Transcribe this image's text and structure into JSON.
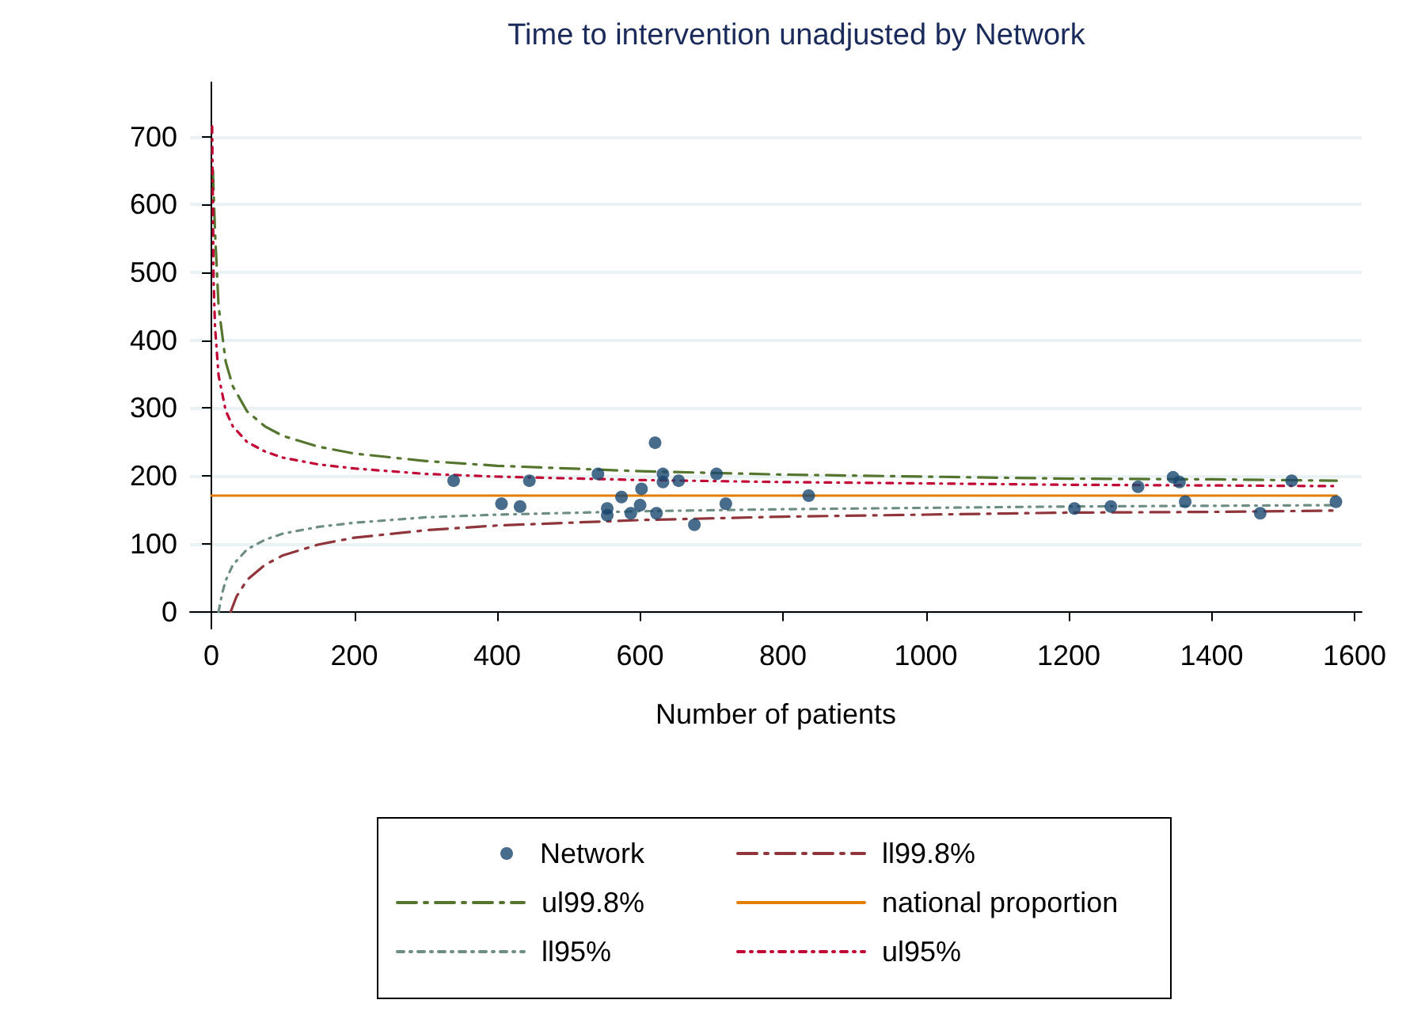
{
  "chart_data": {
    "type": "scatter",
    "title": "Time to intervention unadjusted by Network",
    "xlabel": "Number of patients",
    "xlim": [
      -30,
      1610
    ],
    "xticks": [
      0,
      200,
      400,
      600,
      800,
      1000,
      1200,
      1400,
      1600
    ],
    "ylim": [
      -25,
      780
    ],
    "yticks": [
      0,
      100,
      200,
      300,
      400,
      500,
      600,
      700
    ],
    "grid": "y",
    "legend": "bottom",
    "series": [
      {
        "name": "Network",
        "marker": "circle",
        "color": "#1a476f",
        "x": [
          339,
          406,
          432,
          445,
          541,
          554,
          554,
          574,
          587,
          600,
          602,
          621,
          623,
          632,
          632,
          654,
          676,
          707,
          720,
          836,
          1208,
          1259,
          1297,
          1346,
          1355,
          1363,
          1468,
          1512,
          1574
        ],
        "values": [
          193,
          159,
          155,
          193,
          203,
          152,
          142,
          169,
          145,
          157,
          181,
          249,
          145,
          203,
          191,
          193,
          128,
          203,
          159,
          171,
          152,
          155,
          184,
          198,
          191,
          162,
          145,
          193,
          162
        ]
      },
      {
        "name": "ll99.8%",
        "type": "line",
        "marker": "none",
        "line_style": "dashed",
        "color": "#90353b",
        "x": [
          27,
          35,
          50,
          75,
          100,
          150,
          200,
          300,
          400,
          600,
          800,
          1000,
          1200,
          1400,
          1575
        ],
        "values": [
          0,
          22,
          47,
          69,
          83,
          99,
          109,
          120,
          127,
          135,
          140,
          143,
          146,
          147,
          149
        ]
      },
      {
        "name": "ul99.8%",
        "type": "line",
        "marker": "none",
        "line_style": "dashed",
        "color": "#55752f",
        "x": [
          2,
          5,
          10,
          20,
          30,
          50,
          75,
          100,
          150,
          200,
          300,
          400,
          600,
          800,
          1000,
          1200,
          1400,
          1575
        ],
        "values": [
          650,
          560,
          450,
          368,
          332,
          295,
          273,
          259,
          243,
          233,
          222,
          215,
          207,
          202,
          199,
          196,
          195,
          193
        ]
      },
      {
        "name": "national proportion",
        "type": "line",
        "marker": "none",
        "line_style": "solid",
        "color": "#e37e00",
        "x": [
          0,
          1575
        ],
        "values": [
          171,
          171
        ]
      },
      {
        "name": "ll95%",
        "type": "line",
        "marker": "none",
        "line_style": "dotted",
        "color": "#6e8e84",
        "x": [
          10,
          15,
          20,
          30,
          50,
          75,
          100,
          150,
          200,
          300,
          400,
          600,
          800,
          1000,
          1200,
          1400,
          1575
        ],
        "values": [
          0,
          27,
          46,
          69,
          92,
          106,
          115,
          125,
          131,
          139,
          143,
          148,
          151,
          153,
          155,
          156,
          157
        ]
      },
      {
        "name": "ul95%",
        "type": "line",
        "marker": "none",
        "line_style": "dotted",
        "color": "#c10534",
        "x": [
          1,
          3,
          5,
          10,
          20,
          30,
          50,
          75,
          100,
          150,
          200,
          300,
          400,
          600,
          800,
          1000,
          1200,
          1400,
          1575
        ],
        "values": [
          715,
          490,
          420,
          348,
          296,
          273,
          250,
          236,
          227,
          217,
          211,
          203,
          199,
          194,
          191,
          189,
          187,
          186,
          185
        ]
      }
    ]
  }
}
